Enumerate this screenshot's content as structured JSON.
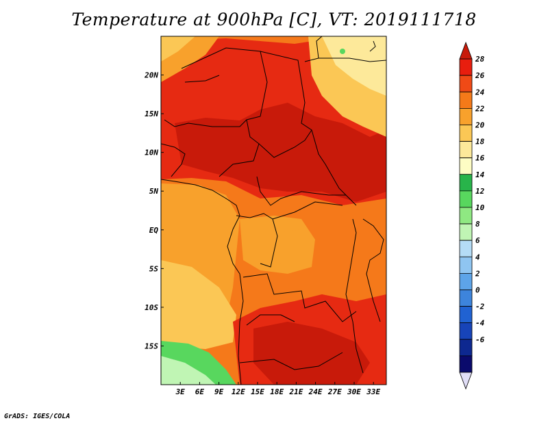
{
  "title": "Temperature at 900hPa [C], VT: 2019111718",
  "credit": "GrADS: IGES/COLA",
  "map": {
    "lon_range": [
      0,
      35
    ],
    "lat_range": [
      -20,
      25
    ],
    "lon_ticks": [
      "3E",
      "6E",
      "9E",
      "12E",
      "15E",
      "18E",
      "21E",
      "24E",
      "27E",
      "30E",
      "33E"
    ],
    "lat_ticks": [
      "20N",
      "15N",
      "10N",
      "5N",
      "EQ",
      "5S",
      "10S",
      "15S"
    ],
    "land_color": "#e81e0e"
  },
  "colorbar": {
    "levels": [
      "28",
      "26",
      "24",
      "22",
      "20",
      "18",
      "16",
      "14",
      "12",
      "10",
      "8",
      "6",
      "4",
      "2",
      "0",
      "-2",
      "-4",
      "-6"
    ],
    "colors": [
      "#c81a0a",
      "#e81e0e",
      "#f04a16",
      "#f57a19",
      "#f8a12c",
      "#fbc755",
      "#fde99a",
      "#fefdc4",
      "#28b44a",
      "#58d75e",
      "#8fe882",
      "#c0f5b4",
      "#b4dcf6",
      "#8fc5f1",
      "#5da4e8",
      "#3d84dc",
      "#2062d2",
      "#1744b8",
      "#0d2890",
      "#0a0a6c",
      "#e0ddf6"
    ]
  }
}
